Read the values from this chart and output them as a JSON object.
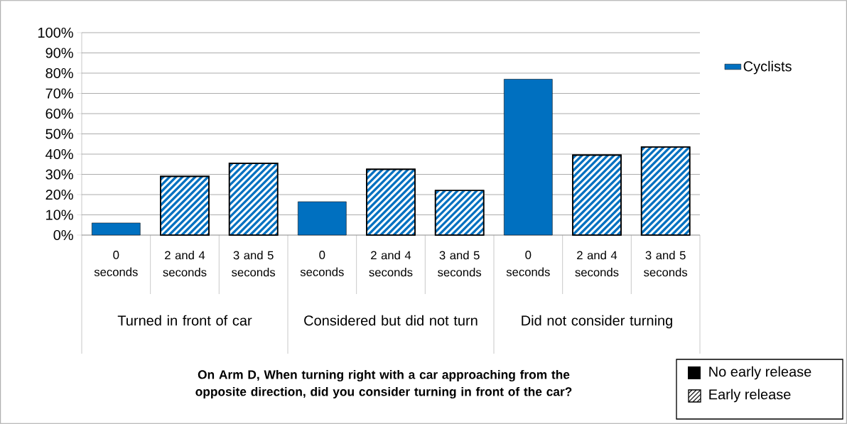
{
  "chart_data": {
    "type": "bar",
    "title": "On Arm D, When turning right with a car approaching from the opposite direction, did you consider turning in front of the car?",
    "categories": [
      "0 seconds",
      "2 and 4 seconds",
      "3 and 5 seconds",
      "0 seconds",
      "2 and 4 seconds",
      "3 and 5 seconds",
      "0 seconds",
      "2 and 4 seconds",
      "3 and 5 seconds"
    ],
    "series": [
      {
        "name": "Cyclists",
        "color": "#0070c0",
        "values": [
          6,
          29,
          35.5,
          16.5,
          32.5,
          22,
          77,
          39.5,
          43.5
        ]
      }
    ],
    "ylim": [
      0,
      100
    ],
    "yticks": [
      {
        "value": 0,
        "label": "0%"
      },
      {
        "value": 10,
        "label": "10%"
      },
      {
        "value": 20,
        "label": "20%"
      },
      {
        "value": 30,
        "label": "30%"
      },
      {
        "value": 40,
        "label": "40%"
      },
      {
        "value": 50,
        "label": "50%"
      },
      {
        "value": 60,
        "label": "60%"
      },
      {
        "value": 70,
        "label": "70%"
      },
      {
        "value": 80,
        "label": "80%"
      },
      {
        "value": 90,
        "label": "90%"
      },
      {
        "value": 100,
        "label": "100%"
      }
    ],
    "grid": "y",
    "legend": "right",
    "annotations": [
      "Turned in front of car",
      "Considered but did not turn",
      "Did not consider turning",
      "No early release",
      "Early release"
    ]
  }
}
